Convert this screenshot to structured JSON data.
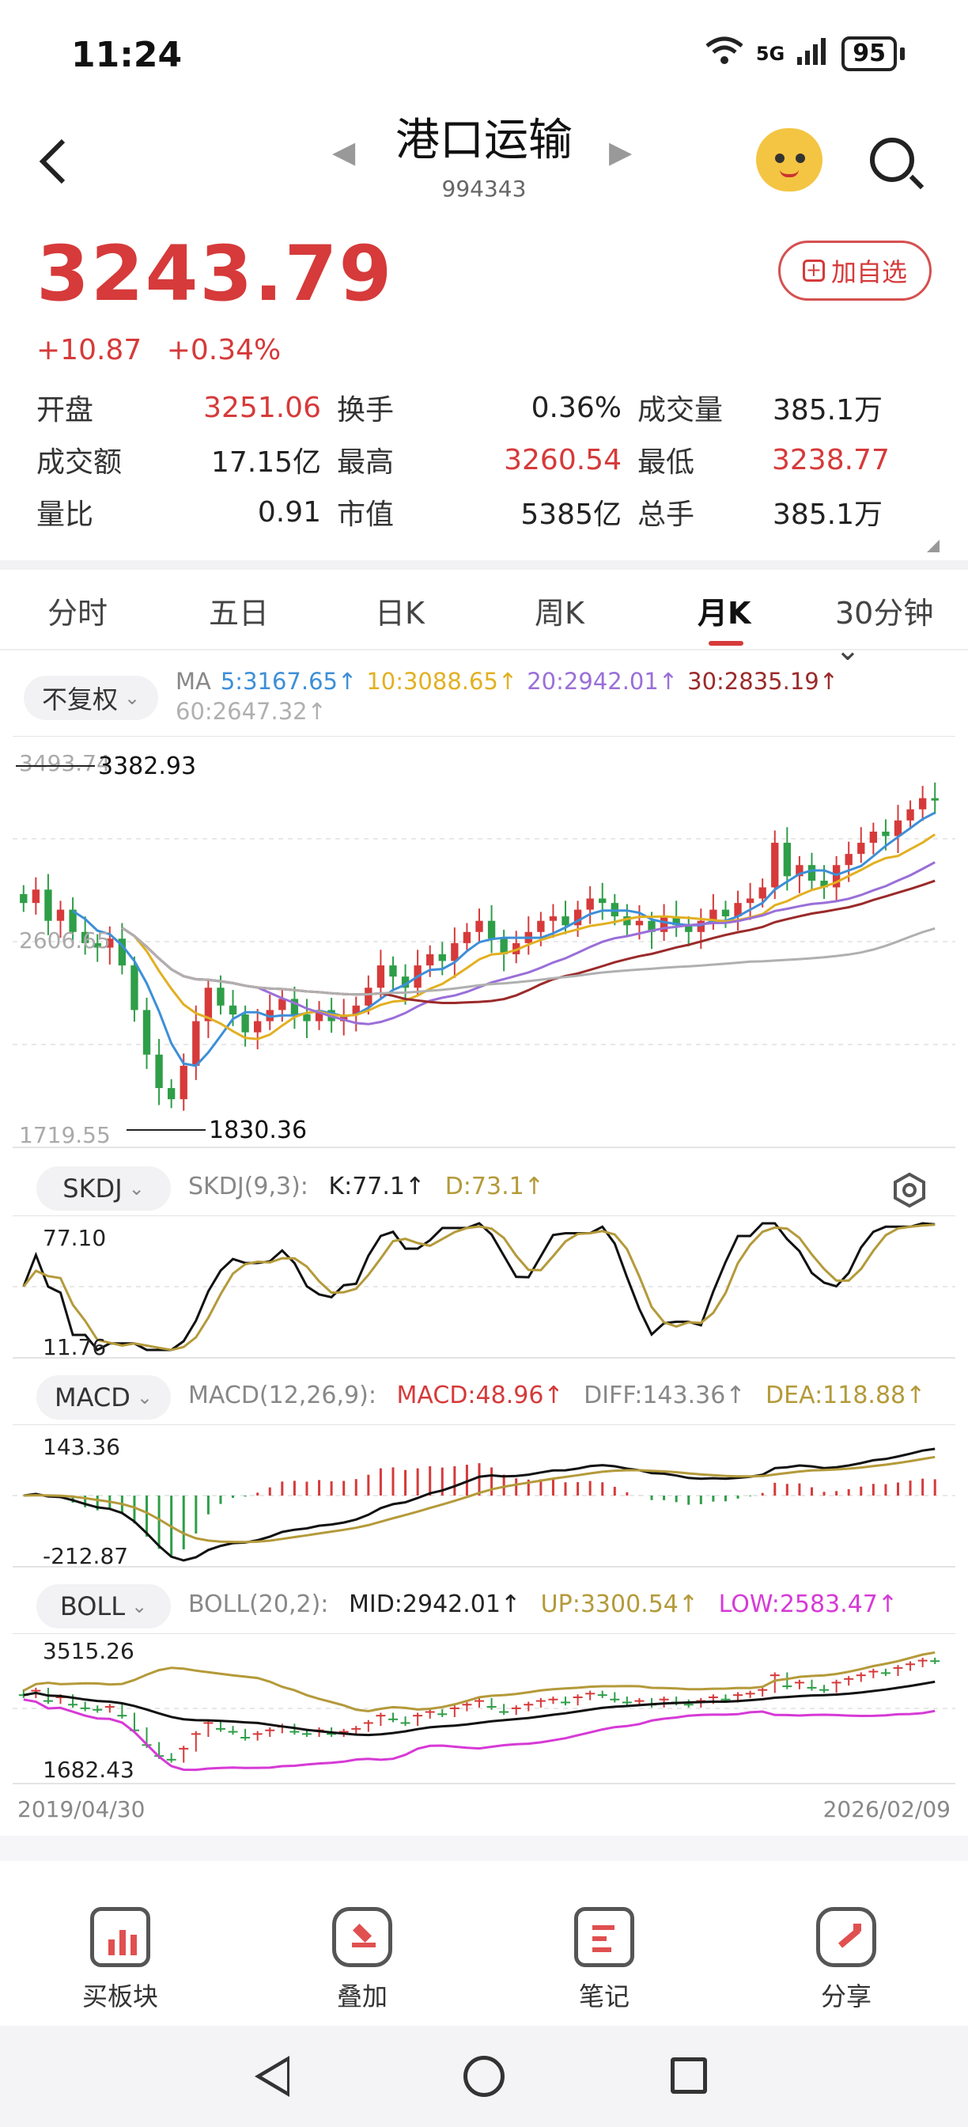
{
  "status": {
    "time": "11:24",
    "network": "5G",
    "battery": "95"
  },
  "header": {
    "title": "港口运输",
    "code": "994343",
    "back": "<",
    "prev": "◀",
    "next": "▶"
  },
  "quote": {
    "price": "3243.79",
    "change": "+10.87",
    "change_pct": "+0.34%",
    "fav_label": "加自选",
    "stats": [
      [
        {
          "label": "开盘",
          "value": "3251.06",
          "red": true
        },
        {
          "label": "换手",
          "value": "0.36%",
          "red": false
        },
        {
          "label": "成交量",
          "value": "385.1万",
          "red": false
        }
      ],
      [
        {
          "label": "成交额",
          "value": "17.15亿",
          "red": false
        },
        {
          "label": "最高",
          "value": "3260.54",
          "red": true
        },
        {
          "label": "最低",
          "value": "3238.77",
          "red": true
        }
      ],
      [
        {
          "label": "量比",
          "value": "0.91",
          "red": false
        },
        {
          "label": "市值",
          "value": "5385亿",
          "red": false
        },
        {
          "label": "总手",
          "value": "385.1万",
          "red": false
        }
      ]
    ]
  },
  "tabs": [
    "分时",
    "五日",
    "日K",
    "周K",
    "月K",
    "30分钟"
  ],
  "active_tab": "月K",
  "ma": {
    "adjust_label": "不复权",
    "prefix": "MA",
    "items": [
      {
        "text": "5:3167.65↑",
        "color": "#3d8fd8"
      },
      {
        "text": "10:3088.65↑",
        "color": "#e2b021"
      },
      {
        "text": "20:2942.01↑",
        "color": "#9a6fd8"
      },
      {
        "text": "30:2835.19↑",
        "color": "#9b2a2a"
      },
      {
        "text": "60:2647.32↑",
        "color": "#b0b0b0"
      }
    ]
  },
  "chart_data": {
    "type": "candlestick",
    "start": "2019/04/30",
    "end": "2026/02/09",
    "price_axis": {
      "top": "3493.74",
      "mid": "2606.65",
      "bottom": "1719.55"
    },
    "annotations": {
      "high": "3382.93",
      "low": "1830.36"
    },
    "closes": [
      2780,
      2840,
      2700,
      2750,
      2650,
      2600,
      2580,
      2620,
      2500,
      2300,
      2100,
      1950,
      1900,
      2050,
      2250,
      2400,
      2320,
      2280,
      2200,
      2250,
      2300,
      2350,
      2280,
      2250,
      2300,
      2250,
      2280,
      2320,
      2400,
      2500,
      2450,
      2400,
      2500,
      2550,
      2520,
      2600,
      2650,
      2700,
      2620,
      2550,
      2600,
      2650,
      2700,
      2720,
      2680,
      2750,
      2800,
      2780,
      2720,
      2680,
      2700,
      2650,
      2720,
      2680,
      2650,
      2700,
      2750,
      2720,
      2780,
      2800,
      2850,
      3050,
      2900,
      2950,
      2880,
      2850,
      2950,
      3000,
      3050,
      3100,
      3080,
      3150,
      3200,
      3250,
      3243
    ],
    "skdj": {
      "params": "SKDJ(9,3):",
      "k": "K:77.1↑",
      "d": "D:73.1↑",
      "max": "77.10",
      "min": "11.76"
    },
    "macd": {
      "params": "MACD(12,26,9):",
      "macd": "MACD:48.96↑",
      "diff": "DIFF:143.36↑",
      "dea": "DEA:118.88↑",
      "max": "143.36",
      "min": "-212.87"
    },
    "boll": {
      "params": "BOLL(20,2):",
      "mid": "MID:2942.01↑",
      "up": "UP:3300.54↑",
      "low": "LOW:2583.47↑",
      "max": "3515.26",
      "min": "1682.43"
    }
  },
  "indicators": [
    "SKDJ",
    "MACD",
    "BOLL"
  ],
  "bottom_actions": [
    "买板块",
    "叠加",
    "笔记",
    "分享"
  ],
  "colors": {
    "up": "#d63a3a",
    "down": "#2e9e48",
    "ma5": "#3d8fd8",
    "ma10": "#e2b021",
    "ma20": "#9a6fd8",
    "ma30": "#9b2a2a",
    "ma60": "#b0b0b0",
    "boll_up": "#b49a3a",
    "boll_low": "#d63ad6"
  }
}
